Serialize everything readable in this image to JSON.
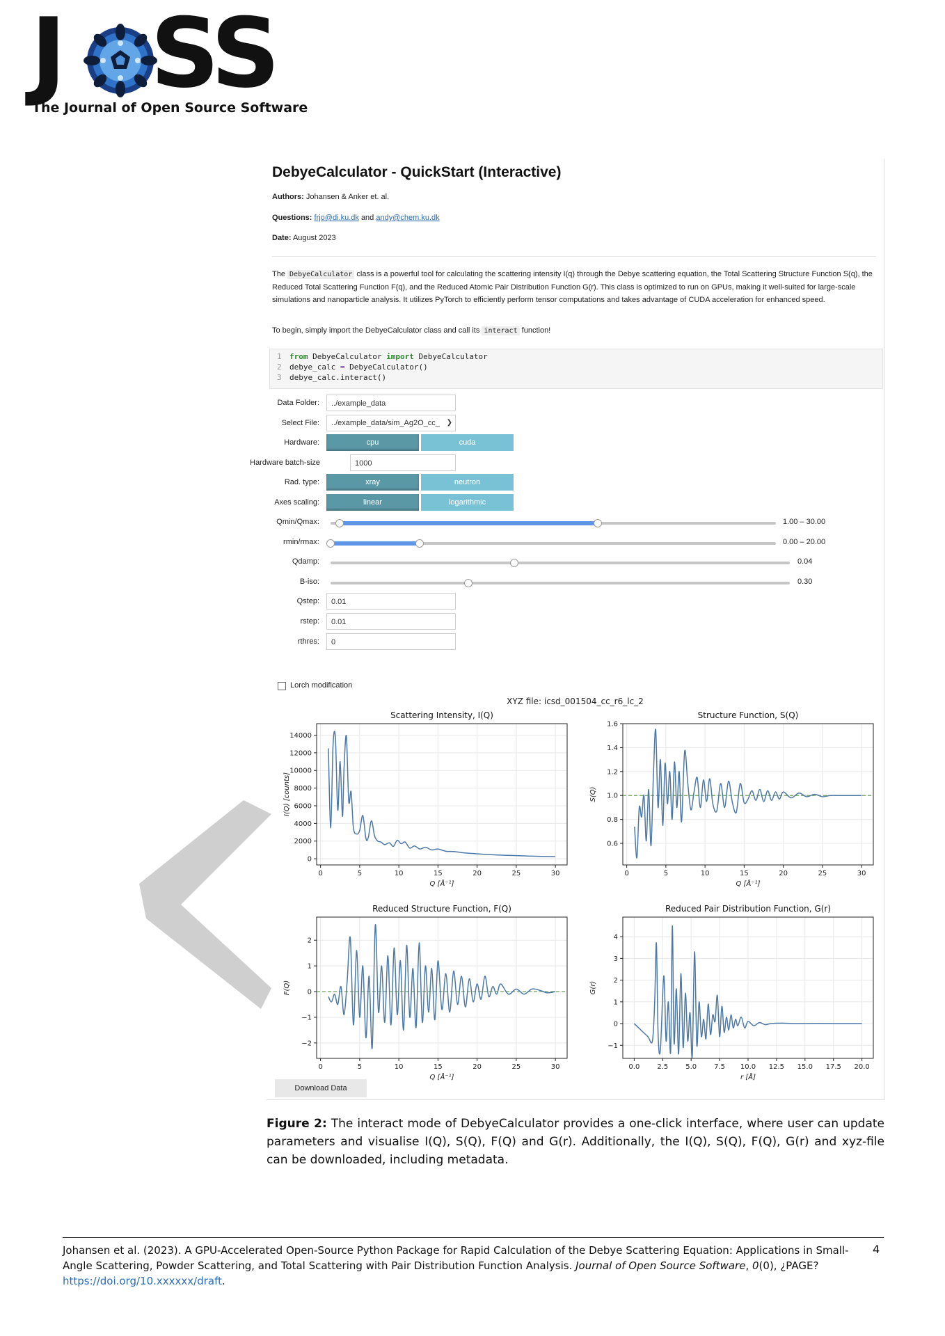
{
  "logo": {
    "text_left": "J",
    "text_right": "SS",
    "subtitle": "The Journal of Open Source Software"
  },
  "notebook": {
    "title": "DebyeCalculator - QuickStart (Interactive)",
    "authors_label": "Authors:",
    "authors": "Johansen & Anker et. al.",
    "questions_label": "Questions:",
    "email1": "frjo@di.ku.dk",
    "and": "and",
    "email2": "andy@chem.ku.dk",
    "date_label": "Date:",
    "date": "August 2023",
    "para1_pre": "The",
    "para1_code": "DebyeCalculator",
    "para1_post": "class is a powerful tool for calculating the scattering intensity I(q) through the Debye scattering equation, the Total Scattering Structure Function S(q), the Reduced Total Scattering Function F(q), and the Reduced Atomic Pair Distribution Function G(r). This class is optimized to run on GPUs, making it well-suited for large-scale simulations and nanoparticle analysis. It utilizes PyTorch to efficiently perform tensor computations and takes advantage of CUDA acceleration for enhanced speed.",
    "para2_pre": "To begin, simply import the DebyeCalculator class and call its",
    "para2_code": "interact",
    "para2_post": "function!",
    "code": {
      "ln1": "1",
      "l1_kw1": "from",
      "l1_a": " DebyeCalculator ",
      "l1_kw2": "import",
      "l1_b": " DebyeCalculator",
      "ln2": "2",
      "l2_a": "debye_calc ",
      "l2_op": "=",
      "l2_b": " DebyeCalculator()",
      "ln3": "3",
      "l3": "debye_calc.interact()"
    }
  },
  "widgets": {
    "data_folder": {
      "label": "Data Folder:",
      "value": "../example_data"
    },
    "select_file": {
      "label": "Select File:",
      "value": "../example_data/sim_Ag2O_cc_"
    },
    "hardware": {
      "label": "Hardware:",
      "options": [
        "cpu",
        "cuda"
      ],
      "selected": "cpu"
    },
    "batch": {
      "label": "Hardware batch-size",
      "value": "1000"
    },
    "rad_type": {
      "label": "Rad. type:",
      "options": [
        "xray",
        "neutron"
      ],
      "selected": "xray"
    },
    "axes_scaling": {
      "label": "Axes scaling:",
      "options": [
        "linear",
        "logarithmic"
      ],
      "selected": "linear"
    },
    "qminmax": {
      "label": "Qmin/Qmax:",
      "display": "1.00 – 30.00",
      "low": 1.0,
      "high": 30.0,
      "min": 0,
      "max": 50
    },
    "rminmax": {
      "label": "rmin/rmax:",
      "display": "0.00 – 20.00",
      "low": 0.0,
      "high": 20.0,
      "min": 0,
      "max": 100
    },
    "qdamp": {
      "label": "Qdamp:",
      "display": "0.04",
      "fraction": 0.4
    },
    "biso": {
      "label": "B-iso:",
      "display": "0.30",
      "fraction": 0.3
    },
    "qstep": {
      "label": "Qstep:",
      "value": "0.01"
    },
    "rstep": {
      "label": "rstep:",
      "value": "0.01"
    },
    "rthres": {
      "label": "rthres:",
      "value": "0"
    },
    "lorch": {
      "label": "Lorch modification",
      "checked": false
    },
    "download": "Download Data"
  },
  "figure_title": "XYZ file: icsd_001504_cc_r6_lc_2",
  "chart_data": [
    {
      "type": "line",
      "title": "Scattering Intensity, I(Q)",
      "xlabel": "Q [Å⁻¹]",
      "ylabel": "I(Q) [counts]",
      "xlim": [
        -0.5,
        31.5
      ],
      "ylim": [
        -700,
        15300
      ],
      "xticks": [
        0,
        5,
        10,
        15,
        20,
        25,
        30
      ],
      "yticks": [
        0,
        2000,
        4000,
        6000,
        8000,
        10000,
        12000,
        14000
      ],
      "ytick_labels": [
        "0",
        "2000",
        "4000",
        "6000",
        "8000",
        "10000",
        "12000",
        "14000"
      ],
      "xtick_labels": [
        "0",
        "5",
        "10",
        "15",
        "20",
        "25",
        "30"
      ],
      "x": [
        1.0,
        1.3,
        1.6,
        1.9,
        2.2,
        2.5,
        2.8,
        3.0,
        3.3,
        3.6,
        3.9,
        4.2,
        4.6,
        5.0,
        5.4,
        5.8,
        6.1,
        6.5,
        6.9,
        7.3,
        7.7,
        8.2,
        8.8,
        9.3,
        9.8,
        10.3,
        10.8,
        11.4,
        12.0,
        12.7,
        13.4,
        14.2,
        15.0,
        16.0,
        17.0,
        18.0,
        19.0,
        20.0,
        22.0,
        24.0,
        26.0,
        28.0,
        30.0
      ],
      "y": [
        12500,
        3500,
        12900,
        13700,
        5500,
        11000,
        4800,
        10200,
        13900,
        6500,
        7600,
        3500,
        2800,
        3200,
        4900,
        2300,
        2400,
        4300,
        2600,
        2000,
        1900,
        1600,
        1800,
        1400,
        2100,
        1700,
        1900,
        1200,
        1450,
        1100,
        1300,
        1000,
        1100,
        850,
        820,
        700,
        620,
        560,
        450,
        380,
        320,
        270,
        240
      ],
      "baseline": null
    },
    {
      "type": "line",
      "title": "Structure Function, S(Q)",
      "xlabel": "Q [Å⁻¹]",
      "ylabel": "S(Q)",
      "xlim": [
        -0.5,
        31.5
      ],
      "ylim": [
        0.42,
        1.6
      ],
      "xticks": [
        0,
        5,
        10,
        15,
        20,
        25,
        30
      ],
      "yticks": [
        0.6,
        0.8,
        1.0,
        1.2,
        1.4,
        1.6
      ],
      "ytick_labels": [
        "0.6",
        "0.8",
        "1.0",
        "1.2",
        "1.4",
        "1.6"
      ],
      "xtick_labels": [
        "0",
        "5",
        "10",
        "15",
        "20",
        "25",
        "30"
      ],
      "x": [
        1.0,
        1.3,
        1.6,
        1.9,
        2.2,
        2.5,
        2.8,
        3.1,
        3.4,
        3.7,
        4.0,
        4.3,
        4.6,
        4.9,
        5.2,
        5.5,
        5.8,
        6.1,
        6.4,
        6.7,
        7.0,
        7.4,
        7.8,
        8.2,
        8.6,
        9.0,
        9.4,
        9.8,
        10.2,
        10.6,
        11.0,
        11.5,
        12.0,
        12.5,
        13.0,
        13.5,
        14.0,
        14.5,
        15.0,
        15.5,
        16.0,
        16.5,
        17.0,
        17.5,
        18.0,
        18.5,
        19.0,
        19.5,
        20.0,
        21.0,
        22.0,
        23.0,
        24.0,
        25.0,
        26.0,
        27.0,
        28.0,
        29.0,
        30.0
      ],
      "y": [
        0.74,
        0.48,
        0.9,
        0.82,
        1.0,
        0.62,
        1.05,
        0.58,
        1.15,
        1.55,
        0.9,
        1.3,
        0.75,
        1.27,
        0.93,
        1.2,
        0.8,
        1.28,
        0.9,
        1.2,
        0.78,
        1.37,
        1.1,
        0.88,
        1.03,
        1.15,
        0.9,
        1.13,
        0.95,
        1.14,
        0.93,
        0.87,
        1.1,
        0.9,
        1.12,
        0.94,
        0.86,
        1.1,
        0.94,
        0.97,
        1.04,
        0.96,
        1.05,
        0.95,
        1.04,
        0.96,
        1.03,
        0.97,
        1.03,
        0.98,
        1.02,
        0.99,
        1.01,
        0.99,
        1.0,
        1.0,
        1.0,
        1.0,
        1.0
      ],
      "baseline": 1.0
    },
    {
      "type": "line",
      "title": "Reduced Structure Function, F(Q)",
      "xlabel": "Q [Å⁻¹]",
      "ylabel": "F(Q)",
      "xlim": [
        -0.5,
        31.5
      ],
      "ylim": [
        -2.6,
        2.9
      ],
      "xticks": [
        0,
        5,
        10,
        15,
        20,
        25,
        30
      ],
      "yticks": [
        -2,
        -1,
        0,
        1,
        2
      ],
      "ytick_labels": [
        "−2",
        "−1",
        "0",
        "1",
        "2"
      ],
      "xtick_labels": [
        "0",
        "5",
        "10",
        "15",
        "20",
        "25",
        "30"
      ],
      "x": [
        1.0,
        1.4,
        1.8,
        2.2,
        2.6,
        3.0,
        3.4,
        3.8,
        4.2,
        4.6,
        5.0,
        5.4,
        5.8,
        6.2,
        6.6,
        7.0,
        7.4,
        7.8,
        8.2,
        8.6,
        9.0,
        9.4,
        9.8,
        10.2,
        10.6,
        11.0,
        11.4,
        11.8,
        12.2,
        12.6,
        13.0,
        13.4,
        13.8,
        14.2,
        14.6,
        15.0,
        15.5,
        16.0,
        16.5,
        17.0,
        17.5,
        18.0,
        18.5,
        19.0,
        19.5,
        20.0,
        20.5,
        21.0,
        21.5,
        22.0,
        22.5,
        23.0,
        24.0,
        25.0,
        26.0,
        27.0,
        28.0,
        29.0,
        30.0
      ],
      "y": [
        -0.2,
        -0.4,
        -0.1,
        -0.5,
        0.2,
        -0.9,
        0.4,
        2.1,
        -1.3,
        1.6,
        -1.0,
        1.0,
        -1.8,
        0.6,
        -2.2,
        2.6,
        -0.8,
        1.0,
        -1.2,
        1.4,
        -1.3,
        1.7,
        -0.9,
        1.2,
        -1.5,
        1.8,
        -1.0,
        0.9,
        -1.4,
        1.9,
        -1.2,
        1.0,
        -0.8,
        0.9,
        -1.1,
        1.2,
        -0.7,
        0.7,
        -0.8,
        0.8,
        -0.5,
        0.6,
        -0.6,
        0.5,
        -0.4,
        0.3,
        -0.3,
        0.6,
        -0.2,
        0.2,
        -0.1,
        0.3,
        -0.1,
        0.1,
        -0.1,
        0.1,
        0.05,
        -0.05,
        0.0
      ],
      "baseline": 0
    },
    {
      "type": "line",
      "title": "Reduced Pair Distribution Function, G(r)",
      "xlabel": "r [Å]",
      "ylabel": "G(r)",
      "xlim": [
        -1.0,
        21.0
      ],
      "ylim": [
        -1.6,
        4.9
      ],
      "xticks": [
        0,
        2.5,
        5,
        7.5,
        10,
        12.5,
        15,
        17.5,
        20
      ],
      "yticks": [
        -1,
        0,
        1,
        2,
        3,
        4
      ],
      "ytick_labels": [
        "−1",
        "0",
        "1",
        "2",
        "3",
        "4"
      ],
      "xtick_labels": [
        "0.0",
        "2.5",
        "5.0",
        "7.5",
        "10.0",
        "12.5",
        "15.0",
        "17.5",
        "20.0"
      ],
      "x": [
        0.0,
        0.6,
        1.2,
        1.6,
        1.8,
        1.95,
        2.1,
        2.3,
        2.6,
        2.8,
        3.0,
        3.2,
        3.35,
        3.5,
        3.7,
        3.9,
        4.1,
        4.3,
        4.5,
        4.7,
        4.9,
        5.1,
        5.3,
        5.5,
        5.7,
        5.9,
        6.1,
        6.3,
        6.5,
        6.7,
        6.9,
        7.1,
        7.3,
        7.5,
        7.7,
        7.9,
        8.1,
        8.3,
        8.5,
        8.7,
        8.9,
        9.1,
        9.4,
        9.7,
        10.0,
        10.5,
        11.0,
        11.5,
        12.0,
        13.0,
        14.0,
        16.0,
        18.0,
        20.0
      ],
      "y": [
        0.0,
        -0.3,
        -0.6,
        -0.8,
        1.0,
        3.7,
        -0.5,
        -1.2,
        2.2,
        -0.8,
        1.0,
        -1.3,
        4.5,
        -0.9,
        1.6,
        -1.4,
        2.3,
        -1.1,
        1.4,
        -0.8,
        0.5,
        -1.5,
        3.3,
        -1.0,
        1.0,
        -0.6,
        0.2,
        -0.7,
        0.9,
        -0.5,
        0.4,
        0.1,
        1.3,
        -0.6,
        0.8,
        -0.4,
        0.3,
        -0.3,
        0.4,
        -0.2,
        0.2,
        -0.1,
        0.3,
        -0.2,
        0.1,
        -0.1,
        0.05,
        -0.05,
        0.0,
        0.02,
        0.0,
        0.01,
        0.0,
        0.0
      ],
      "baseline": null
    }
  ],
  "caption": {
    "label": "Figure 2:",
    "text": "The interact mode of DebyeCalculator provides a one-click interface, where user can update parameters and visualise I(Q), S(Q), F(Q) and G(r). Additionally, the I(Q), S(Q), F(Q), G(r) and xyz-file can be downloaded, including metadata."
  },
  "footer": {
    "text1": "Johansen et al. (2023). A GPU-Accelerated Open-Source Python Package for Rapid Calculation of the Debye Scattering Equation: Applications in Small-Angle Scattering, Powder Scattering, and Total Scattering with Pair Distribution Function Analysis.",
    "journal": "Journal of Open Source Software",
    "comma": ",",
    "volume": "0",
    "issue_page": "(0), ¿PAGE?",
    "doi": "https://doi.org/10.xxxxxx/draft",
    "period": ".",
    "page_number": "4"
  },
  "colors": {
    "line": "#4c78a8",
    "baseline": "#6aa84f",
    "toggle_on": "#5b98a6",
    "toggle_off": "#79c2d6",
    "slider": "#5f95e6",
    "link": "#2a6bb8"
  }
}
